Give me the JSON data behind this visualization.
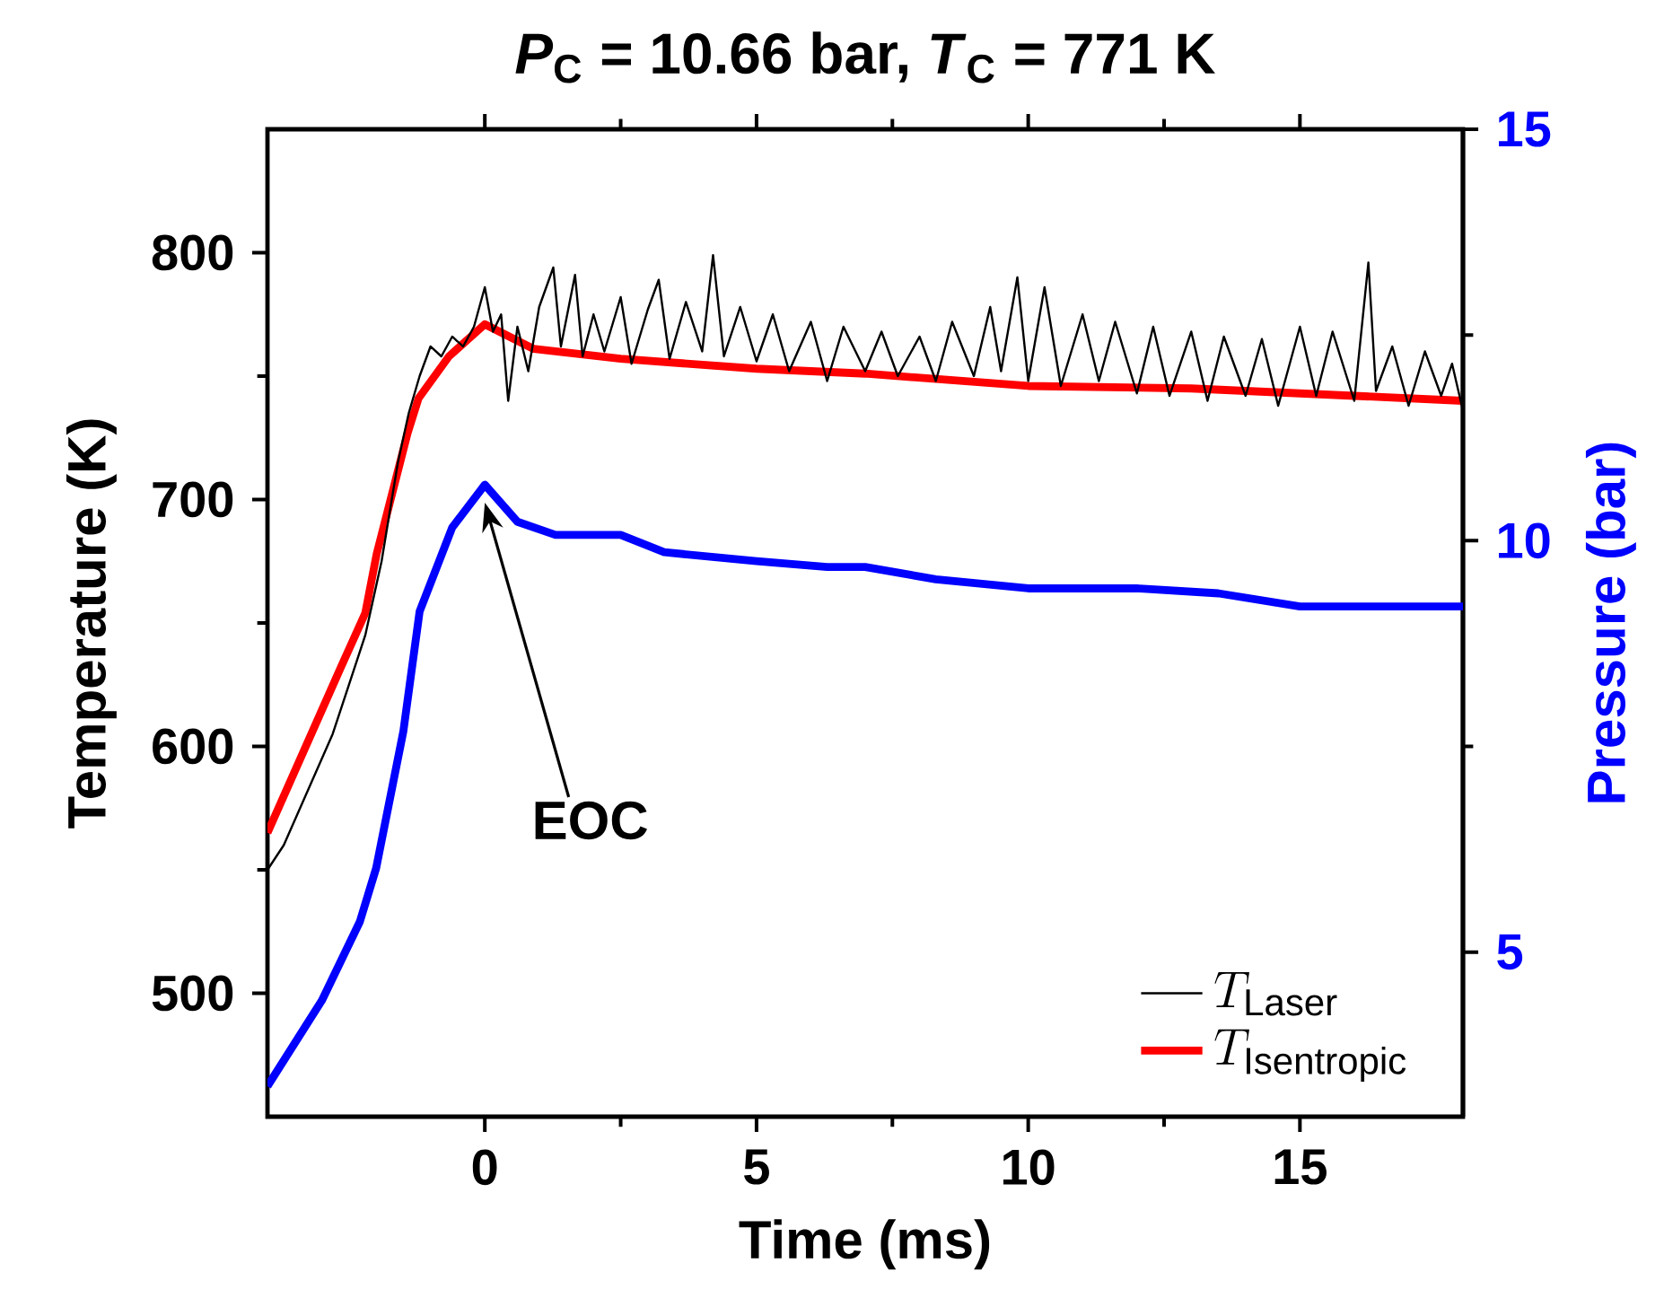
{
  "chart_data": {
    "type": "line",
    "title": "*P*$_{C}$ = 10.66 bar, *T*$_{C}$ = 771 K",
    "xlabel": "Time (ms)",
    "ylabel": "Temperature (K)",
    "y2label": "Pressure (bar)",
    "xlim": [
      -4,
      18
    ],
    "xticks": [
      0,
      5,
      10,
      15
    ],
    "ylim": [
      450,
      850
    ],
    "yticks": [
      500,
      600,
      700,
      800
    ],
    "y2lim": [
      3,
      15
    ],
    "y2ticks": [
      5,
      10,
      15
    ],
    "legend": "bottom right",
    "marker": "none",
    "line_style": "solid",
    "annotations": [
      "EOC"
    ],
    "series": [
      {
        "name": "T_{\\mathrm{Laser}}",
        "color": "#000000",
        "x": [
          -4,
          -3.7,
          -3.4,
          -3.1,
          -2.8,
          -2.5,
          -2.2,
          -1.9,
          -1.6,
          -1.4,
          -1.2,
          -1.0,
          -0.8,
          -0.6,
          -0.4,
          -0.2,
          0,
          0.15,
          0.3,
          0.43,
          0.6,
          0.8,
          1.0,
          1.26,
          1.4,
          1.66,
          1.8,
          2.0,
          2.2,
          2.5,
          2.7,
          3.0,
          3.2,
          3.4,
          3.7,
          4.0,
          4.2,
          4.4,
          4.7,
          5.0,
          5.3,
          5.6,
          6.0,
          6.3,
          6.6,
          7.0,
          7.3,
          7.6,
          8.0,
          8.3,
          8.6,
          9.0,
          9.3,
          9.5,
          9.8,
          10.0,
          10.3,
          10.6,
          11.0,
          11.3,
          11.6,
          12.0,
          12.3,
          12.6,
          13.0,
          13.3,
          13.6,
          14.0,
          14.3,
          14.6,
          15.0,
          15.3,
          15.6,
          16.0,
          16.26,
          16.4,
          16.7,
          17.0,
          17.3,
          17.6,
          17.8,
          18
        ],
        "values": [
          550,
          560,
          575,
          590,
          605,
          625,
          645,
          675,
          715,
          735,
          750,
          762,
          758,
          766,
          762,
          770,
          786,
          768,
          775,
          740,
          770,
          752,
          778,
          794,
          762,
          791,
          758,
          775,
          760,
          782,
          755,
          777,
          789,
          757,
          780,
          760,
          799,
          758,
          778,
          756,
          775,
          752,
          772,
          748,
          770,
          752,
          768,
          750,
          766,
          748,
          772,
          750,
          778,
          752,
          790,
          748,
          786,
          746,
          775,
          748,
          772,
          743,
          770,
          742,
          768,
          740,
          766,
          742,
          765,
          738,
          770,
          742,
          768,
          740,
          796,
          744,
          762,
          738,
          760,
          742,
          755,
          736
        ]
      },
      {
        "name": "T_{\\mathrm{Isentropic}}",
        "color": "#ff0000",
        "x": [
          -4,
          -2.65,
          -2.2,
          -1.99,
          -1.42,
          -1.22,
          -0.66,
          0,
          0.9,
          2.5,
          5,
          7,
          10,
          13,
          15,
          18
        ],
        "values": [
          565,
          632,
          654,
          678,
          727,
          741,
          758,
          771,
          761,
          757,
          753,
          751,
          746,
          745,
          743,
          740
        ]
      },
      {
        "color": "#0000ff",
        "axis": "y2",
        "x": [
          -4,
          -3,
          -2.3,
          -2,
          -1.5,
          -1.2,
          -0.6,
          0,
          0.6,
          1.3,
          2.5,
          3.3,
          5,
          6.3,
          7,
          8.3,
          10,
          12,
          13.5,
          15,
          17,
          18
        ],
        "values": [
          3.37,
          4.41,
          5.37,
          6.02,
          7.68,
          9.14,
          10.16,
          10.68,
          10.23,
          10.07,
          10.07,
          9.86,
          9.75,
          9.68,
          9.68,
          9.53,
          9.42,
          9.42,
          9.36,
          9.2,
          9.2,
          9.2
        ]
      }
    ]
  }
}
